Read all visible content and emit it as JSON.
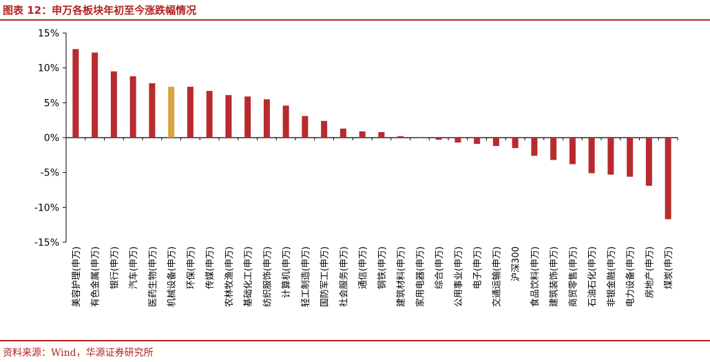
{
  "header": {
    "title": "图表 12：申万各板块年初至今涨跌幅情况"
  },
  "footer": {
    "source": "资料来源：Wind，华源证券研究所"
  },
  "colors": {
    "bar": "#b92a2e",
    "highlight": "#d9a441",
    "title": "#b22222",
    "axis": "#000000"
  },
  "chart_data": {
    "type": "bar",
    "title": "",
    "xlabel": "",
    "ylabel": "",
    "ylim": [
      -0.15,
      0.15
    ],
    "yticks": [
      0.15,
      0.1,
      0.05,
      0,
      -0.05,
      -0.1,
      -0.15
    ],
    "ytick_labels": [
      "15%",
      "10%",
      "5%",
      "0%",
      "-5%",
      "-10%",
      "-15%"
    ],
    "highlight_category": "机械设备(申万)",
    "categories": [
      "美容护理(申万)",
      "有色金属(申万)",
      "银行(申万)",
      "汽车(申万)",
      "医药生物(申万)",
      "机械设备(申万)",
      "环保(申万)",
      "传媒(申万)",
      "农林牧渔(申万)",
      "基础化工(申万)",
      "纺织服饰(申万)",
      "计算机(申万)",
      "轻工制造(申万)",
      "国防军工(申万)",
      "社会服务(申万)",
      "通信(申万)",
      "钢铁(申万)",
      "建筑材料(申万)",
      "家用电器(申万)",
      "综合(申万)",
      "公用事业(申万)",
      "电子(申万)",
      "交通运输(申万)",
      "沪深300",
      "食品饮料(申万)",
      "建筑装饰(申万)",
      "商贸零售(申万)",
      "石油石化(申万)",
      "非银金融(申万)",
      "电力设备(申万)",
      "房地产(申万)",
      "煤炭(申万)"
    ],
    "values": [
      0.127,
      0.122,
      0.095,
      0.088,
      0.078,
      0.073,
      0.073,
      0.067,
      0.061,
      0.059,
      0.055,
      0.046,
      0.031,
      0.024,
      0.013,
      0.009,
      0.008,
      0.002,
      0.0,
      -0.003,
      -0.007,
      -0.009,
      -0.012,
      -0.015,
      -0.026,
      -0.032,
      -0.038,
      -0.051,
      -0.053,
      -0.056,
      -0.069,
      -0.117
    ]
  }
}
